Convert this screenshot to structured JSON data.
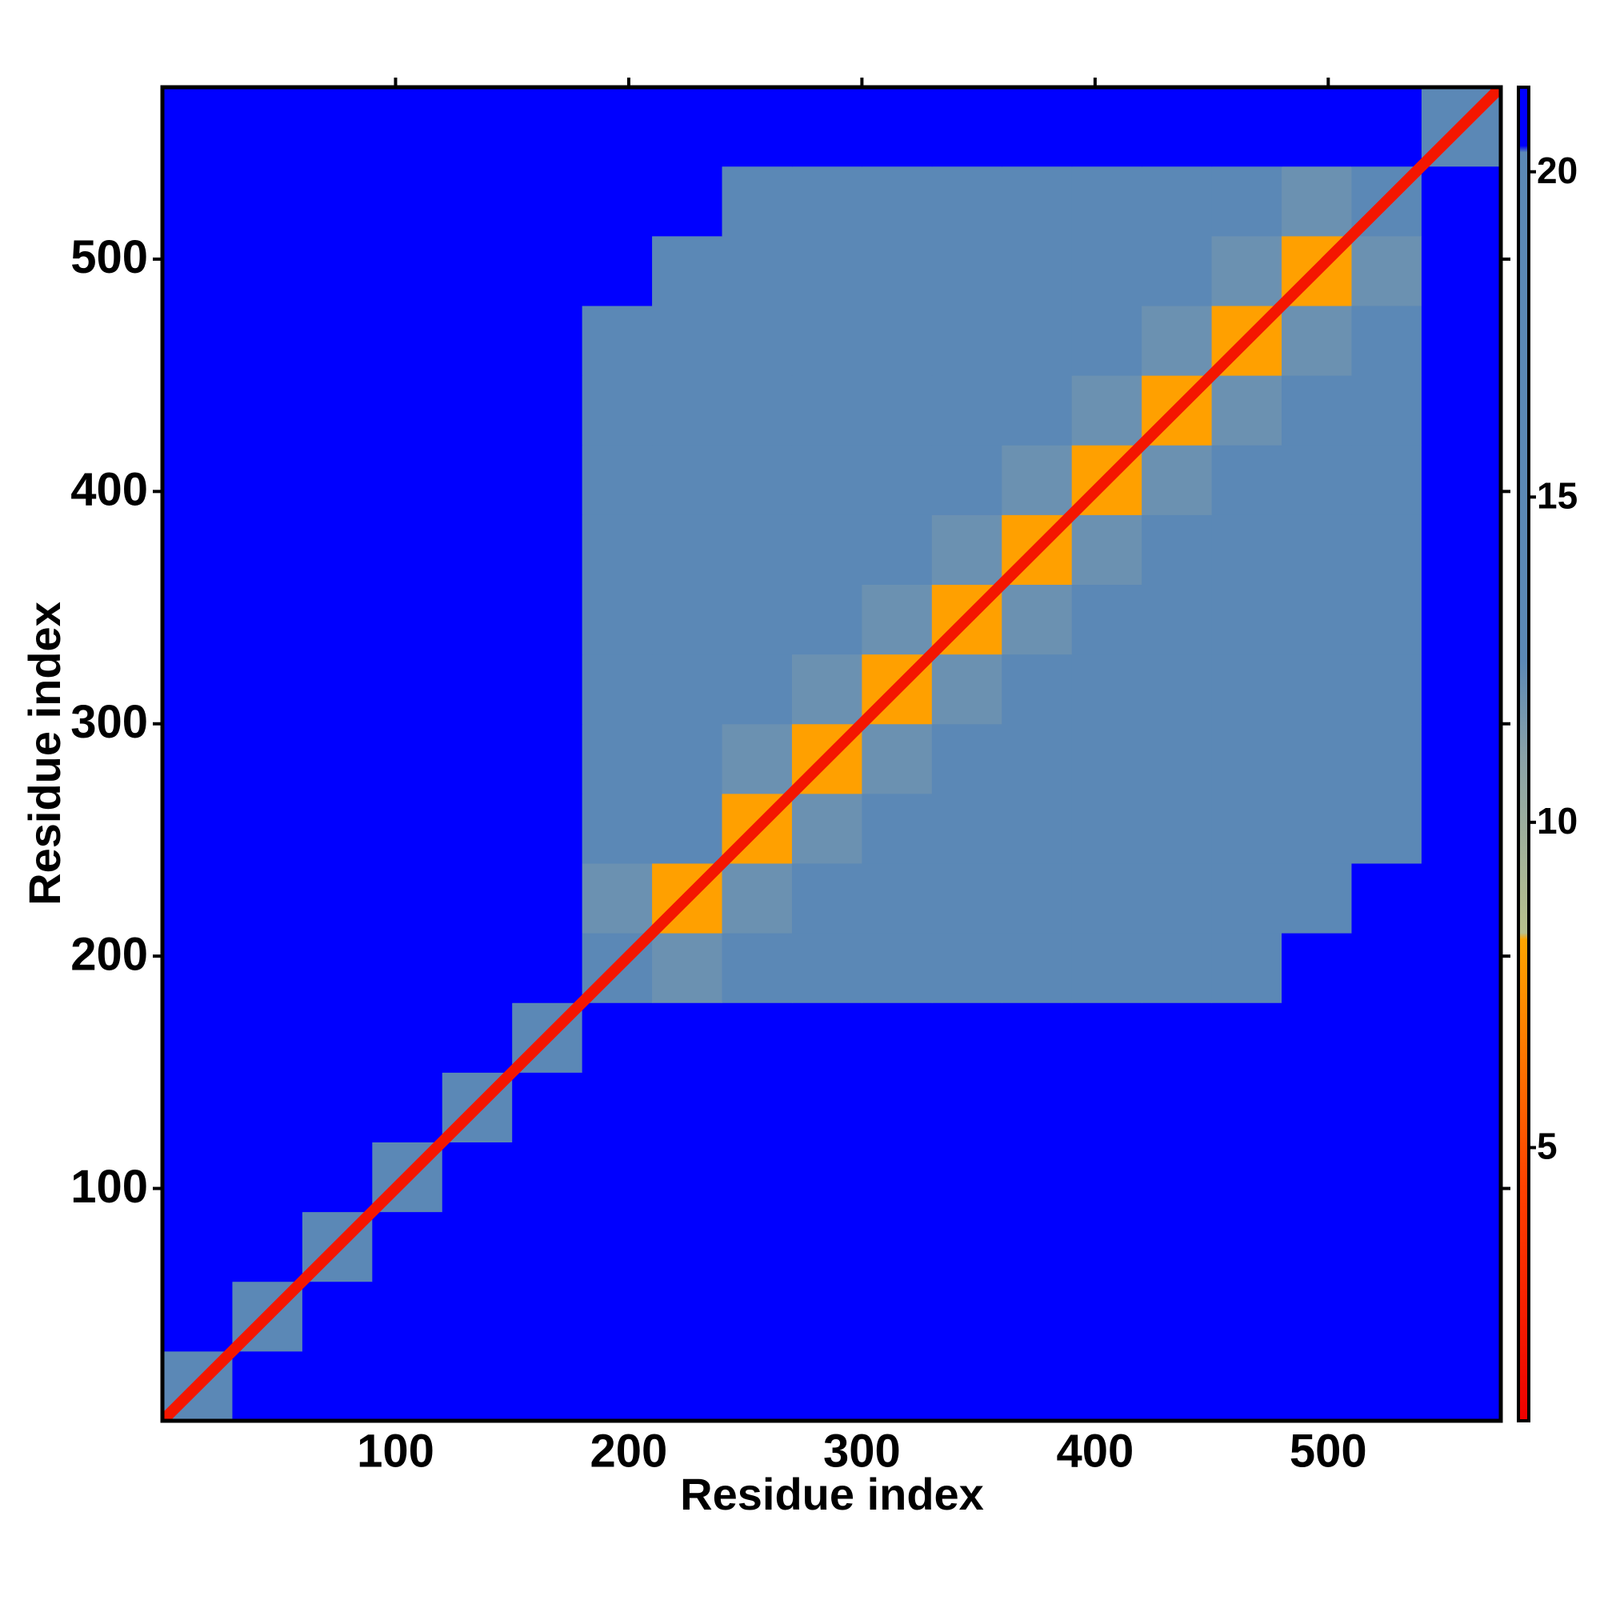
{
  "chart_data": {
    "type": "heatmap",
    "xlabel": "Residue index",
    "ylabel": "Residue index",
    "xlim": [
      0,
      574
    ],
    "ylim": [
      0,
      574
    ],
    "xticks": [
      100,
      200,
      300,
      400,
      500
    ],
    "yticks": [
      100,
      200,
      300,
      400,
      500
    ],
    "bins": [
      0,
      30,
      60,
      90,
      120,
      150,
      180,
      210,
      240,
      270,
      300,
      330,
      360,
      390,
      420,
      450,
      480,
      510,
      540,
      574
    ],
    "z": [
      [
        14,
        21,
        21,
        21,
        21,
        21,
        21,
        21,
        21,
        21,
        21,
        21,
        21,
        21,
        21,
        21,
        21,
        21,
        21
      ],
      [
        21,
        14,
        21,
        21,
        21,
        21,
        21,
        21,
        21,
        21,
        21,
        21,
        21,
        21,
        21,
        21,
        21,
        21,
        21
      ],
      [
        21,
        21,
        14,
        21,
        21,
        21,
        21,
        21,
        21,
        21,
        21,
        21,
        21,
        21,
        21,
        21,
        21,
        21,
        21
      ],
      [
        21,
        21,
        21,
        14,
        21,
        21,
        21,
        21,
        21,
        21,
        21,
        21,
        21,
        21,
        21,
        21,
        21,
        21,
        21
      ],
      [
        21,
        21,
        21,
        21,
        14,
        21,
        21,
        21,
        21,
        21,
        21,
        21,
        21,
        21,
        21,
        21,
        21,
        21,
        21
      ],
      [
        21,
        21,
        21,
        21,
        21,
        14,
        21,
        21,
        21,
        21,
        21,
        21,
        21,
        21,
        21,
        21,
        21,
        21,
        21
      ],
      [
        21,
        21,
        21,
        21,
        21,
        21,
        14,
        12,
        19,
        19,
        19,
        19,
        19,
        19,
        19,
        19,
        21,
        21,
        21
      ],
      [
        21,
        21,
        21,
        21,
        21,
        21,
        12,
        8,
        12,
        16,
        16,
        16,
        16,
        16,
        16,
        16,
        16,
        21,
        21
      ],
      [
        21,
        21,
        21,
        21,
        21,
        21,
        19,
        16,
        8,
        12,
        16,
        16,
        16,
        16,
        16,
        16,
        16,
        19,
        21
      ],
      [
        21,
        21,
        21,
        21,
        21,
        21,
        19,
        16,
        12,
        8,
        12,
        16,
        16,
        16,
        16,
        16,
        16,
        19,
        21
      ],
      [
        21,
        21,
        21,
        21,
        21,
        21,
        19,
        16,
        16,
        12,
        8,
        12,
        16,
        16,
        16,
        16,
        16,
        19,
        21
      ],
      [
        21,
        21,
        21,
        21,
        21,
        21,
        19,
        16,
        16,
        16,
        12,
        8,
        12,
        16,
        16,
        16,
        16,
        19,
        21
      ],
      [
        21,
        21,
        21,
        21,
        21,
        21,
        19,
        16,
        16,
        16,
        16,
        12,
        8,
        12,
        16,
        16,
        16,
        19,
        21
      ],
      [
        21,
        21,
        21,
        21,
        21,
        21,
        19,
        16,
        16,
        16,
        16,
        16,
        12,
        8,
        12,
        16,
        16,
        19,
        21
      ],
      [
        21,
        21,
        21,
        21,
        21,
        21,
        19,
        16,
        16,
        16,
        16,
        16,
        16,
        12,
        8,
        12,
        16,
        19,
        21
      ],
      [
        21,
        21,
        21,
        21,
        21,
        21,
        19,
        16,
        16,
        16,
        16,
        16,
        16,
        16,
        12,
        8,
        12,
        19,
        21
      ],
      [
        21,
        21,
        21,
        21,
        21,
        21,
        21,
        16,
        16,
        16,
        16,
        16,
        16,
        16,
        16,
        12,
        8,
        12,
        21
      ],
      [
        21,
        21,
        21,
        21,
        21,
        21,
        21,
        21,
        19,
        19,
        19,
        19,
        19,
        19,
        19,
        19,
        12,
        14,
        21
      ],
      [
        21,
        21,
        21,
        21,
        21,
        21,
        21,
        21,
        21,
        21,
        21,
        21,
        21,
        21,
        21,
        21,
        21,
        21,
        14
      ]
    ],
    "diagonal_value": 2,
    "zlim": [
      0.8,
      21.3
    ],
    "colorbar_ticks": [
      5,
      10,
      15,
      20
    ],
    "colorscale": [
      [
        0.8,
        "#ee0000"
      ],
      [
        4.5,
        "#ff4400"
      ],
      [
        8.2,
        "#ffa500"
      ],
      [
        8.3,
        "#b8c08c"
      ],
      [
        11,
        "#8aa2a8"
      ],
      [
        12.5,
        "#5b88b6"
      ],
      [
        20.3,
        "#5b88b6"
      ],
      [
        20.4,
        "#0000ff"
      ],
      [
        21.3,
        "#0000ff"
      ]
    ]
  }
}
